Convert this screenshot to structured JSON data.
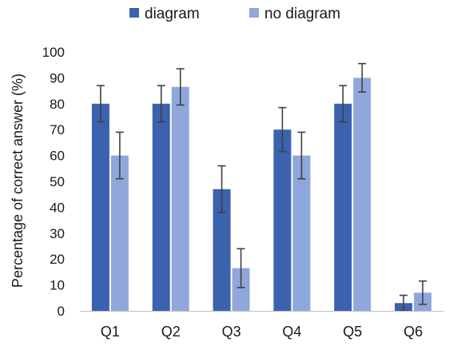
{
  "chart_data": {
    "type": "bar",
    "categories": [
      "Q1",
      "Q2",
      "Q3",
      "Q4",
      "Q5",
      "Q6"
    ],
    "series": [
      {
        "name": "diagram",
        "color": "#3b62ae",
        "values": [
          80,
          80,
          47,
          70,
          80,
          3
        ],
        "errors": [
          7,
          7,
          9,
          8.5,
          7,
          3
        ]
      },
      {
        "name": "no diagram",
        "color": "#8fa7db",
        "values": [
          60,
          86.5,
          16.5,
          60,
          90,
          7
        ],
        "errors": [
          9,
          7,
          7.5,
          9,
          5.5,
          4.5
        ]
      }
    ],
    "ylabel": "Percentage of correct answer (%)",
    "xlabel": "",
    "title": "",
    "ylim": [
      0,
      100
    ],
    "yticks": [
      0,
      10,
      20,
      30,
      40,
      50,
      60,
      70,
      80,
      90,
      100
    ],
    "grid": false,
    "legend": "top-center",
    "error_bars": true
  }
}
